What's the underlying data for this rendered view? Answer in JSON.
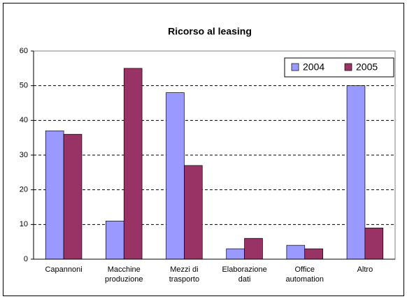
{
  "chart_data": {
    "type": "bar",
    "title": "Ricorso al leasing",
    "categories": [
      "Capannoni",
      "Macchine\nproduzione",
      "Mezzi di\ntrasporto",
      "Elaborazione\ndati",
      "Office\nautomation",
      "Altro"
    ],
    "series": [
      {
        "name": "2004",
        "color": "#9999ff",
        "values": [
          37,
          11,
          48,
          3,
          4,
          50
        ]
      },
      {
        "name": "2005",
        "color": "#993366",
        "values": [
          36,
          55,
          27,
          6,
          3,
          9
        ]
      }
    ],
    "ylim": [
      0,
      60
    ],
    "yticks": [
      0,
      10,
      20,
      30,
      40,
      50,
      60
    ],
    "grid": true,
    "legend": "top-right"
  }
}
